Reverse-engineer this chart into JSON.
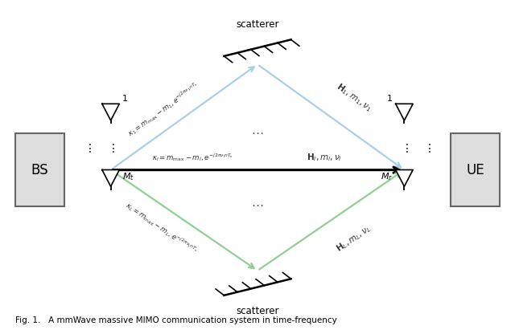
{
  "bg_color": "#ffffff",
  "fig_width": 6.4,
  "fig_height": 4.11,
  "bs_label": "BS",
  "ue_label": "UE",
  "scatterer_label": "scatterer",
  "caption": "Fig. 1.   A mmWave massive MIMO communication system in time-frequency",
  "light_blue": "#A8D0E8",
  "light_green": "#90D090",
  "black": "#000000",
  "gray_box": "#D8D8D8",
  "dark_gray": "#444444",
  "text_color": "#222222"
}
